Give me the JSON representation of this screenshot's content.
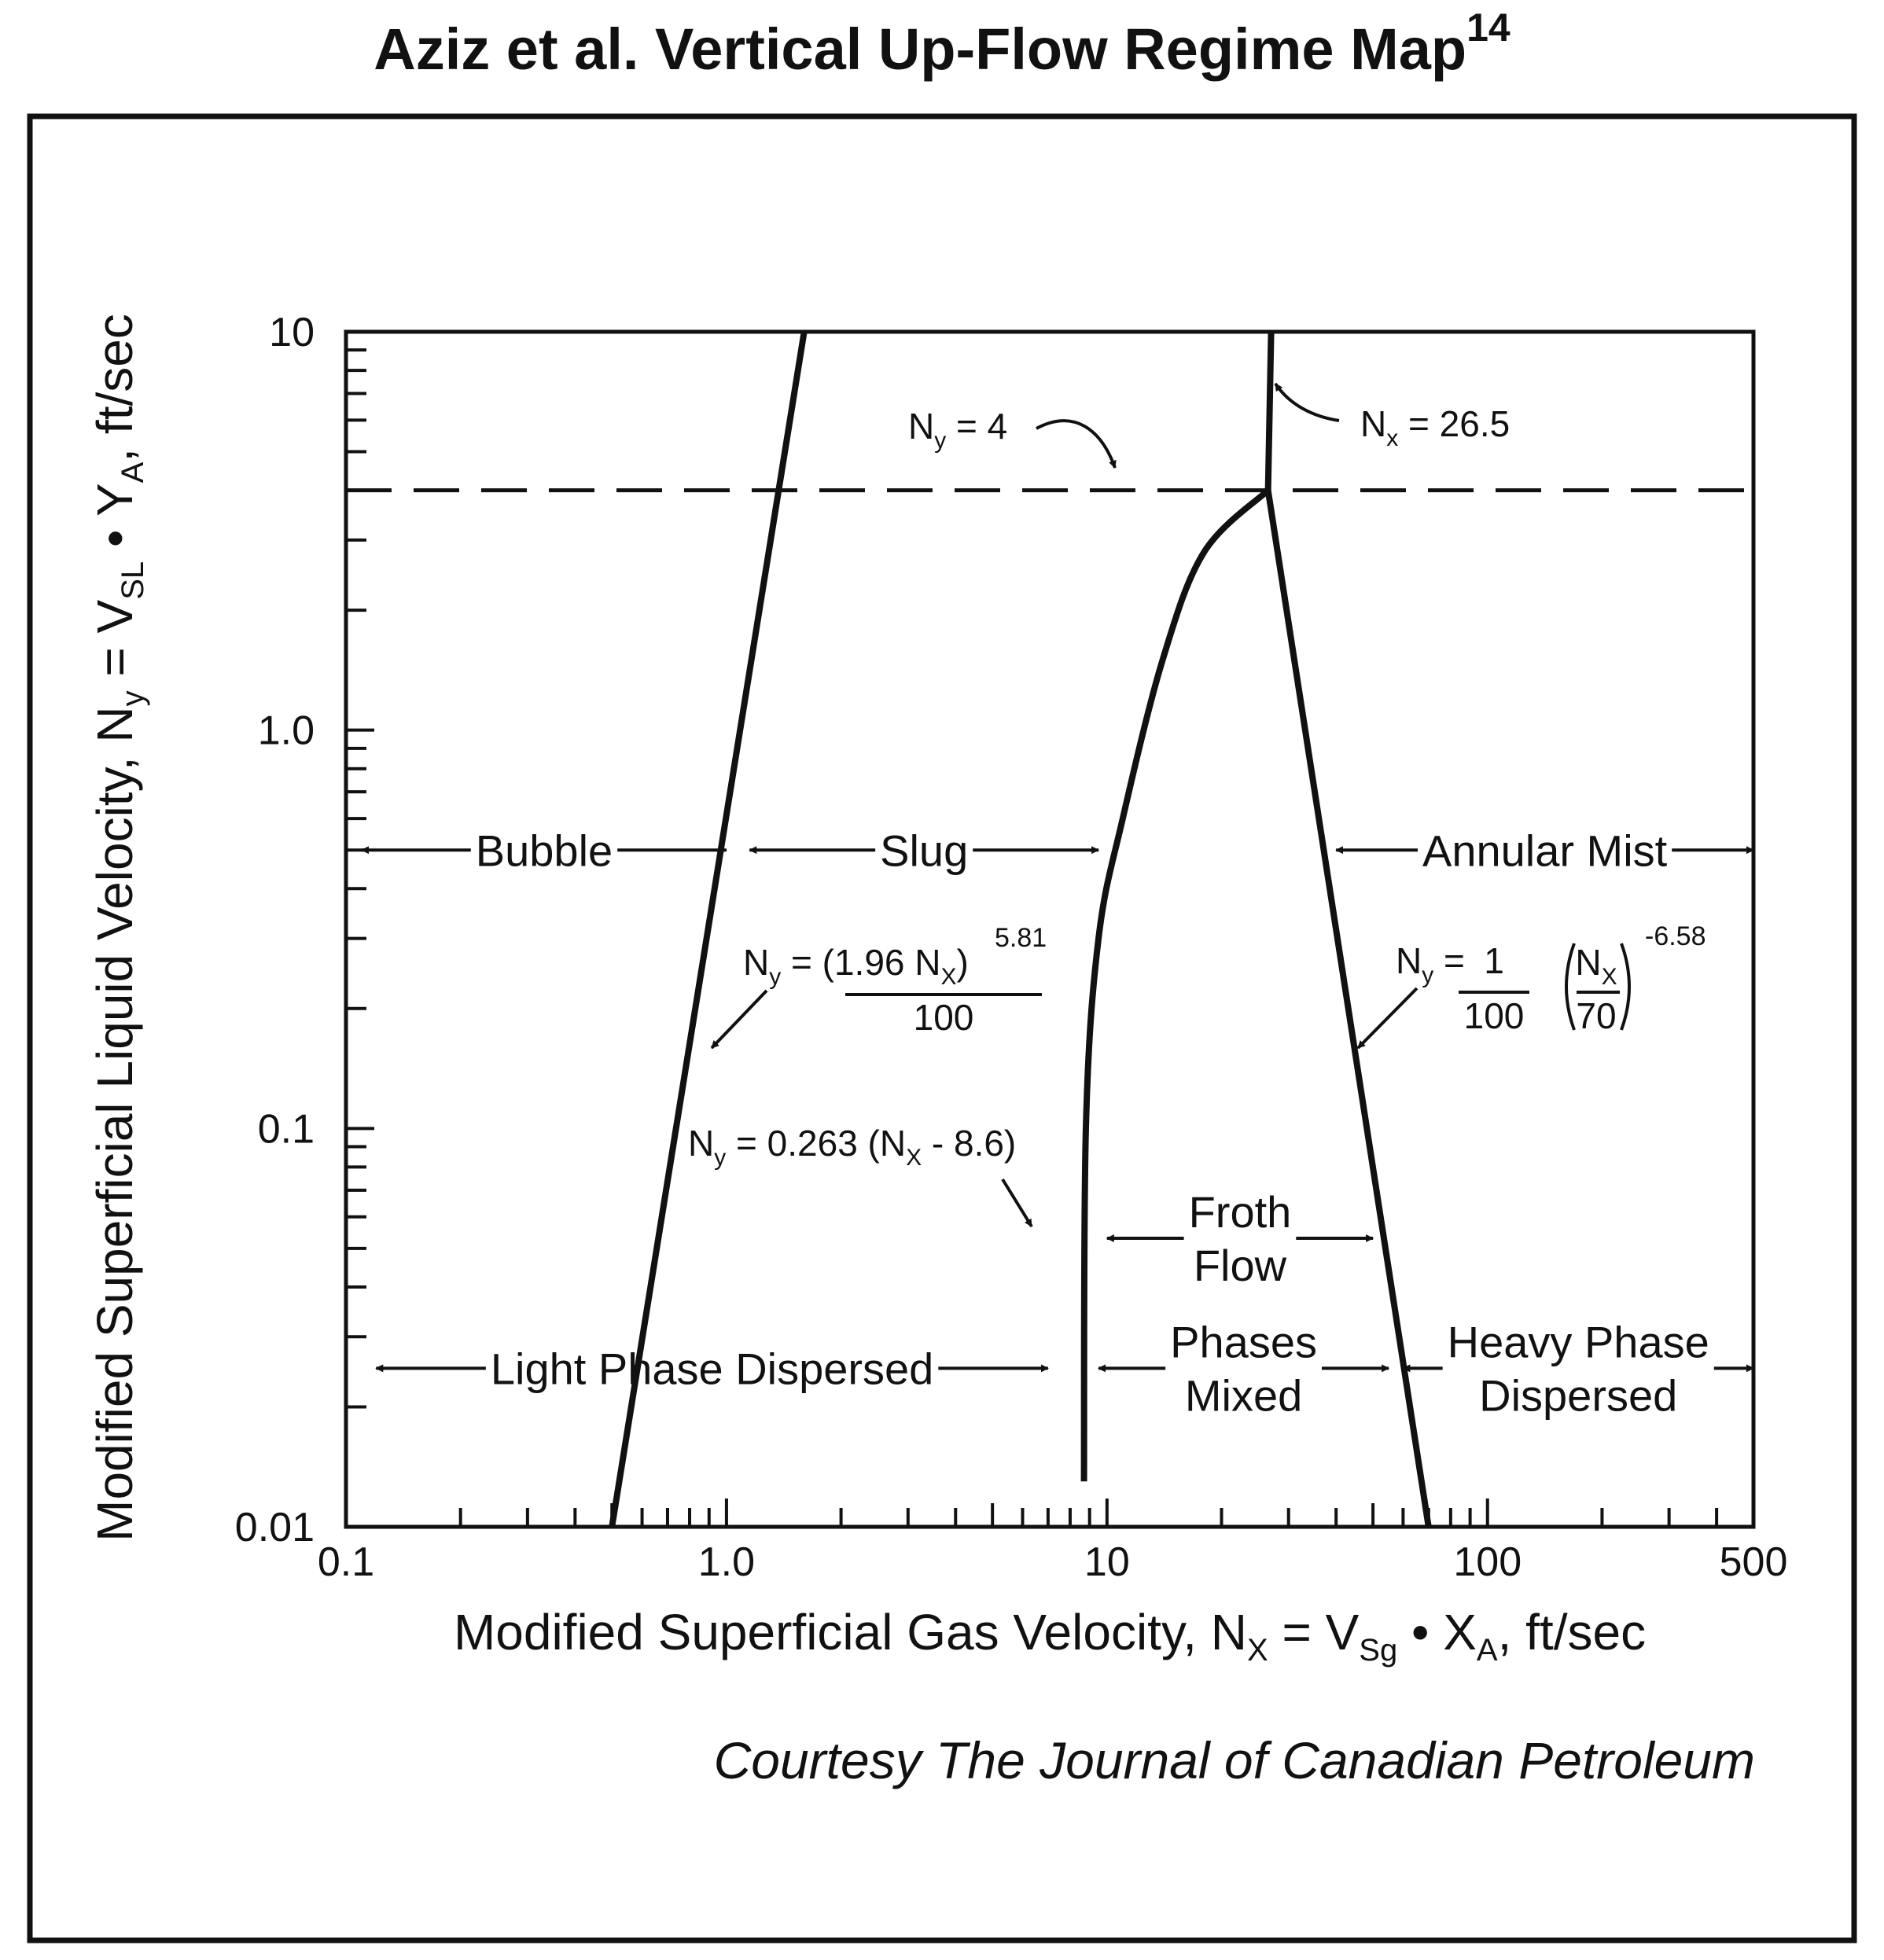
{
  "colors": {
    "ink": "#111111",
    "background": "#ffffff"
  },
  "chart_data": {
    "type": "line",
    "title": "Aziz et al. Vertical Up-Flow Regime Map",
    "title_superscript": "14",
    "xlabel": {
      "parts": [
        "Modified Superficial Gas Velocity, N",
        "X",
        " = V",
        "Sg",
        " • X",
        "A",
        ", ft/sec"
      ]
    },
    "ylabel": {
      "parts": [
        "Modified Superficial Liquid Velocity, N",
        "y",
        " = V",
        "SL",
        " • Y",
        "A",
        ", ft/sec"
      ]
    },
    "x_scale": "log",
    "y_scale": "log",
    "xlim": [
      0.1,
      500
    ],
    "ylim": [
      0.01,
      10
    ],
    "x_tick_labels": [
      {
        "value": 0.1,
        "label": "0.1"
      },
      {
        "value": 1,
        "label": "1.0"
      },
      {
        "value": 10,
        "label": "10"
      },
      {
        "value": 100,
        "label": "100"
      },
      {
        "value": 500,
        "label": "500"
      }
    ],
    "y_tick_labels": [
      {
        "value": 10,
        "label": "10"
      },
      {
        "value": 1,
        "label": "1.0"
      },
      {
        "value": 0.1,
        "label": "0.1"
      },
      {
        "value": 0.01,
        "label": "0.01"
      }
    ],
    "grid": false,
    "series": [
      {
        "style": "solid",
        "points": [
          [
            0.5,
            0.01
          ],
          [
            1.6,
            10
          ]
        ]
      },
      {
        "style": "solid",
        "points": [
          [
            8.7,
            0.013
          ],
          [
            8.8,
            0.1
          ],
          [
            9.5,
            0.3
          ],
          [
            11,
            0.6
          ],
          [
            14,
            1.5
          ],
          [
            18,
            2.8
          ],
          [
            26.5,
            4
          ]
        ]
      },
      {
        "style": "solid",
        "points": [
          [
            26.5,
            4
          ],
          [
            27,
            10
          ]
        ]
      },
      {
        "style": "solid",
        "points": [
          [
            26.5,
            4
          ],
          [
            70,
            0.01
          ]
        ]
      },
      {
        "style": "dashed",
        "points": [
          [
            0.1,
            4
          ],
          [
            500,
            4
          ]
        ]
      }
    ],
    "region_labels": [
      {
        "text": "Bubble",
        "x_from": 0.11,
        "x_to": 1.0,
        "y": 0.5
      },
      {
        "text": "Slug",
        "x_from": 1.15,
        "x_to": 9.5,
        "y": 0.5
      },
      {
        "text": "Annular Mist",
        "x_from": 40,
        "x_to": 500,
        "y": 0.5
      },
      {
        "lines": [
          "Froth",
          "Flow"
        ],
        "x_from": 10,
        "x_to": 50,
        "y": 0.053
      },
      {
        "text": "Light Phase Dispersed",
        "x_from": 0.12,
        "x_to": 7,
        "y": 0.025
      },
      {
        "lines": [
          "Phases",
          "Mixed"
        ],
        "x_from": 9.5,
        "x_to": 55,
        "y": 0.025
      },
      {
        "lines": [
          "Heavy Phase",
          "Dispersed"
        ],
        "x_from": 60,
        "x_to": 500,
        "y": 0.025
      }
    ],
    "annotations": {
      "ny4": {
        "n": "N",
        "sub": "y",
        "rest": " = 4"
      },
      "nx265": {
        "n": "N",
        "sub": "x",
        "rest": " = 26.5"
      },
      "bubble_slug": {
        "n": "N",
        "sub": "y",
        "eq": " = (1.96 N",
        "sub2": "X",
        "close": ")",
        "exp": "5.81",
        "den": "100"
      },
      "froth_boundary": {
        "n": "N",
        "sub": "y",
        "eq": " = 0.263 (N",
        "sub2": "X",
        "rest": " - 8.6)"
      },
      "annular_boundary": {
        "n": "N",
        "sub": "y",
        "eq": " = ",
        "num": "1",
        "den": "100",
        "frac_num": "N",
        "frac_num_sub": "X",
        "frac_den": "70",
        "exp": "-6.58"
      }
    },
    "source": "Courtesy The Journal of Canadian Petroleum"
  }
}
